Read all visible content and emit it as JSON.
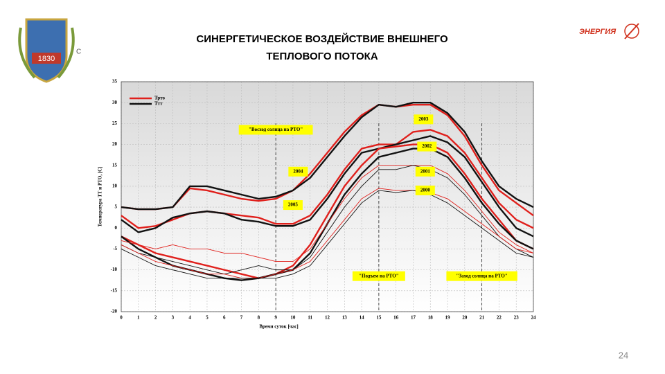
{
  "slide": {
    "title_line1": "СИНЕРГЕТИЧЕСКОЕ ВОЗДЕЙСТВИЕ ВНЕШНЕГО",
    "title_line2": "ТЕПЛОВОГО ПОТОКА",
    "logo_left_year": "1830",
    "logo_left_fragment": "С",
    "logo_right": "ЭНЕРГИЯ",
    "page_number": "24"
  },
  "chart_data": {
    "type": "line",
    "xlabel": "Время суток [час]",
    "ylabel": "Температура  ТТ  и  РТО, [С]",
    "xlim": [
      0,
      24
    ],
    "xticks": [
      0,
      1,
      2,
      3,
      4,
      5,
      6,
      7,
      8,
      9,
      10,
      11,
      12,
      13,
      14,
      15,
      16,
      17,
      18,
      19,
      20,
      21,
      22,
      23,
      24
    ],
    "ylim": [
      -20,
      35
    ],
    "yticks": [
      -20,
      -15,
      -10,
      -5,
      0,
      5,
      10,
      15,
      20,
      25,
      30,
      35
    ],
    "grid": true,
    "legend": [
      {
        "name": "Трто",
        "color": "#e0201c"
      },
      {
        "name": "Ттт",
        "color": "#111111"
      }
    ],
    "x": [
      0,
      1,
      2,
      3,
      4,
      5,
      6,
      7,
      8,
      9,
      10,
      11,
      12,
      13,
      14,
      15,
      16,
      17,
      18,
      19,
      20,
      21,
      22,
      23,
      24
    ],
    "series": [
      {
        "color": "#e0201c",
        "values": [
          5,
          4.5,
          4.5,
          5,
          9.5,
          9,
          8,
          7,
          6.5,
          7,
          9,
          13,
          18,
          23,
          27,
          29.5,
          29,
          29.5,
          29.5,
          27,
          22,
          15,
          9,
          6,
          3
        ]
      },
      {
        "color": "#111111",
        "values": [
          5,
          4.5,
          4.5,
          5,
          10,
          10,
          9,
          8,
          7,
          7.5,
          9,
          12,
          17,
          22,
          26.5,
          29.5,
          29,
          30,
          30,
          27.5,
          23,
          16,
          10,
          7,
          5
        ]
      },
      {
        "color": "#e0201c",
        "values": [
          3,
          0,
          0.5,
          2,
          3.5,
          4,
          3.5,
          3,
          2.5,
          1,
          1,
          3,
          8,
          14,
          19,
          20,
          20,
          23,
          23.5,
          22,
          18,
          12,
          6,
          2,
          0
        ]
      },
      {
        "color": "#111111",
        "values": [
          2,
          -1,
          0,
          2.5,
          3.5,
          4,
          3.5,
          2,
          1.5,
          0.5,
          0.5,
          2,
          7,
          13,
          18,
          19,
          20,
          21,
          22,
          20.5,
          17,
          11,
          5,
          0,
          -2
        ]
      },
      {
        "color": "#e0201c",
        "values": [
          -2,
          -4,
          -6,
          -7,
          -8,
          -9,
          -10,
          -11,
          -12,
          -11,
          -9,
          -4,
          3,
          10,
          15,
          19,
          19.5,
          20,
          20,
          18,
          13,
          7,
          2,
          -3,
          -5
        ]
      },
      {
        "color": "#111111",
        "values": [
          -2,
          -5,
          -7,
          -9,
          -10,
          -11,
          -12,
          -12.5,
          -12,
          -11,
          -10,
          -6,
          1,
          8,
          13,
          17,
          18,
          19,
          19,
          17,
          12,
          6,
          1,
          -3,
          -5
        ]
      },
      {
        "color": "#e0201c",
        "values": [
          -3,
          -4,
          -5,
          -4,
          -5,
          -5,
          -6,
          -6,
          -7,
          -8,
          -8,
          -5,
          1,
          7,
          12,
          15,
          15,
          15,
          15,
          13,
          9,
          4,
          -1,
          -4,
          -6
        ]
      },
      {
        "color": "#111111",
        "values": [
          -4,
          -6,
          -7,
          -8,
          -9,
          -10,
          -11,
          -10,
          -9,
          -10,
          -10,
          -7,
          -1,
          5,
          10,
          14,
          14,
          15,
          14,
          12,
          8,
          3,
          -2,
          -5,
          -7
        ]
      },
      {
        "color": "#e0201c",
        "values": [
          -4,
          -6,
          -8,
          -9,
          -10,
          -11,
          -11,
          -12,
          -12,
          -11,
          -10,
          -8,
          -3,
          2,
          7,
          9.5,
          9,
          9,
          8.5,
          7,
          4,
          1,
          -2,
          -5,
          -6
        ]
      },
      {
        "color": "#111111",
        "values": [
          -5,
          -7,
          -9,
          -10,
          -11,
          -12,
          -12,
          -12,
          -12,
          -12,
          -11,
          -9,
          -4,
          1,
          6,
          9,
          8.5,
          9,
          8,
          6,
          3,
          0,
          -3,
          -6,
          -7
        ]
      }
    ],
    "events": [
      {
        "text": "\"Восход солнца на РТО\"",
        "x": 9,
        "y": 23.5
      },
      {
        "text": "\"Подъем на РТО\"",
        "x": 15,
        "y": -11.5
      },
      {
        "text": "\"Заход солнца на РТО\"",
        "x": 21,
        "y": -11.5
      }
    ],
    "year_labels": [
      {
        "text": "2003",
        "x": 17.6,
        "y": 26
      },
      {
        "text": "2002",
        "x": 17.8,
        "y": 19.5
      },
      {
        "text": "2001",
        "x": 17.7,
        "y": 13.5
      },
      {
        "text": "2000",
        "x": 17.7,
        "y": 9
      },
      {
        "text": "2004",
        "x": 10.3,
        "y": 13.5
      },
      {
        "text": "2005",
        "x": 10,
        "y": 5.5
      }
    ]
  }
}
